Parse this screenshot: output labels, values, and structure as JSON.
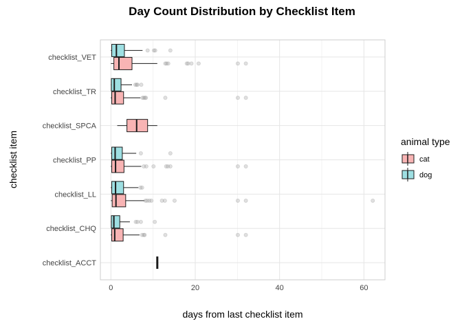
{
  "chart_data": {
    "type": "boxplot",
    "title": "Day Count Distribution by Checklist Item",
    "xlabel": "days from last checklist item",
    "ylabel": "checklist item",
    "xlim": [
      -2.5,
      65
    ],
    "x_ticks": [
      0,
      20,
      40,
      60
    ],
    "grid": true,
    "legend": {
      "title": "animal type",
      "position": "right",
      "entries": [
        "cat",
        "dog"
      ]
    },
    "colors": {
      "cat": "#F8B4B4",
      "dog": "#9EDFE2",
      "outline": "#1a1a1a",
      "outlier": "#999999",
      "grid": "#e5e5e5",
      "panel_border": "#cccccc"
    },
    "categories": [
      "checklist_VET",
      "checklist_TR",
      "checklist_SPCA",
      "checklist_PP",
      "checklist_LL",
      "checklist_CHQ",
      "checklist_ACCT"
    ],
    "boxes": [
      {
        "category": "checklist_VET",
        "group": "dog",
        "whisker_low": 0,
        "q1": 0.2,
        "median": 1.3,
        "q3": 3.2,
        "whisker_high": 7.5,
        "outliers": [
          8.7,
          10.2,
          10.5,
          14.1
        ]
      },
      {
        "category": "checklist_VET",
        "group": "cat",
        "whisker_low": 0,
        "q1": 0.7,
        "median": 1.9,
        "q3": 5,
        "whisker_high": 11,
        "outliers": [
          12.9,
          13.2,
          13.6,
          18,
          18.3,
          19.1,
          20.8,
          30.1,
          32
        ]
      },
      {
        "category": "checklist_TR",
        "group": "dog",
        "whisker_low": 0,
        "q1": 0.1,
        "median": 0.8,
        "q3": 2.4,
        "whisker_high": 5,
        "outliers": [
          5.8,
          6.1,
          6.3,
          7.2
        ]
      },
      {
        "category": "checklist_TR",
        "group": "cat",
        "whisker_low": 0,
        "q1": 0.2,
        "median": 1,
        "q3": 3,
        "whisker_high": 7,
        "outliers": [
          7.5,
          7.8,
          8.1,
          8.3,
          12.9,
          30.1,
          32
        ]
      },
      {
        "category": "checklist_SPCA",
        "group": "cat",
        "whisker_low": 1.5,
        "q1": 3.8,
        "median": 6.1,
        "q3": 8.7,
        "whisker_high": 11,
        "outliers": []
      },
      {
        "category": "checklist_PP",
        "group": "dog",
        "whisker_low": 0,
        "q1": 0.2,
        "median": 1,
        "q3": 2.7,
        "whisker_high": 6,
        "outliers": [
          7.1,
          14.1
        ]
      },
      {
        "category": "checklist_PP",
        "group": "cat",
        "whisker_low": 0,
        "q1": 0.2,
        "median": 1.1,
        "q3": 3.1,
        "whisker_high": 7.2,
        "outliers": [
          7.8,
          8.4,
          10.1,
          13.1,
          13.5,
          14.1,
          30.1,
          32
        ]
      },
      {
        "category": "checklist_LL",
        "group": "dog",
        "whisker_low": 0,
        "q1": 0.2,
        "median": 1.1,
        "q3": 3,
        "whisker_high": 6.5,
        "outliers": [
          7,
          7.4
        ]
      },
      {
        "category": "checklist_LL",
        "group": "cat",
        "whisker_low": 0,
        "q1": 0.3,
        "median": 1.2,
        "q3": 3.5,
        "whisker_high": 8,
        "outliers": [
          8.2,
          8.6,
          9.1,
          9.6,
          12.1,
          12.8,
          15.1,
          30.1,
          32,
          62.1
        ]
      },
      {
        "category": "checklist_CHQ",
        "group": "dog",
        "whisker_low": 0,
        "q1": 0.1,
        "median": 0.7,
        "q3": 2.1,
        "whisker_high": 4.5,
        "outliers": [
          5.9,
          6.3,
          7.1,
          10.4
        ]
      },
      {
        "category": "checklist_CHQ",
        "group": "cat",
        "whisker_low": 0,
        "q1": 0.2,
        "median": 0.9,
        "q3": 2.9,
        "whisker_high": 6.8,
        "outliers": [
          7.4,
          7.8,
          8,
          12.9,
          30.1,
          32
        ]
      },
      {
        "category": "checklist_ACCT",
        "group": "cat",
        "whisker_low": 11,
        "q1": 11,
        "median": 11,
        "q3": 11,
        "whisker_high": 11,
        "outliers": []
      }
    ]
  }
}
